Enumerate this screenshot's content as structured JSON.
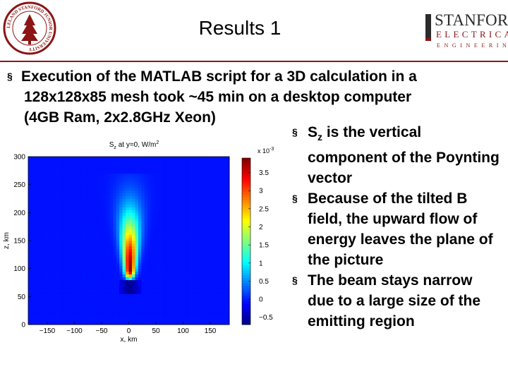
{
  "slide": {
    "title": "Results 1",
    "logo": {
      "line1": "STANFORD",
      "line2": "ELECTRICAL",
      "line3": "ENGINEERING"
    },
    "seal_text": "LELAND STANFORD JUNIOR UNIVERSITY",
    "bullet_main": [
      "Execution of the MATLAB script for a 3D calculation in a",
      "128x128x85 mesh took ~45 min on a desktop computer",
      "(4GB Ram, 2x2.8GHz Xeon)"
    ],
    "side_bullets": [
      {
        "lead": "S",
        "sub": "z",
        "rest": " is the vertical component of the Poynting vector"
      },
      {
        "text": "Because of the tilted B field, the upward flow of energy leaves the plane of the picture"
      },
      {
        "text": "The beam stays narrow due to a large size of the emitting region"
      }
    ]
  },
  "chart_data": {
    "type": "heatmap",
    "title": "S_z at y=0, W/m^2",
    "title_parts": {
      "lead": "S",
      "sub": "z",
      "rest": " at y=0, W/m",
      "sup": "2"
    },
    "xlabel": "x, km",
    "ylabel": "z, km",
    "xlim": [
      -185,
      185
    ],
    "ylim": [
      0,
      300
    ],
    "x_ticks": [
      -150,
      -100,
      -50,
      0,
      50,
      100,
      150
    ],
    "x_tick_labels": [
      "−150",
      "−100",
      "−50",
      "0",
      "50",
      "100",
      "150"
    ],
    "y_ticks": [
      0,
      50,
      100,
      150,
      200,
      250,
      300
    ],
    "y_tick_labels": [
      "0",
      "50",
      "100",
      "150",
      "200",
      "250",
      "300"
    ],
    "colorbar": {
      "range": [
        -0.7,
        3.9
      ],
      "multiplier": "x 10",
      "exponent": "-3",
      "ticks": [
        -0.5,
        0,
        0.5,
        1,
        1.5,
        2,
        2.5,
        3,
        3.5
      ],
      "tick_labels": [
        "−0.5",
        "0",
        "0.5",
        "1",
        "1.5",
        "2",
        "2.5",
        "3",
        "3.5"
      ],
      "colormap": "jet"
    },
    "features": {
      "background": -0.05,
      "beam": {
        "x_center": 2,
        "peak_value": 3.9,
        "peak_z": 95,
        "top_z": 240,
        "halfwidth_km": 8,
        "spread_per_km": 0.12
      },
      "negative_band": {
        "z_range": [
          55,
          82
        ],
        "value": -0.6,
        "x_halfwidth": 22
      }
    }
  }
}
